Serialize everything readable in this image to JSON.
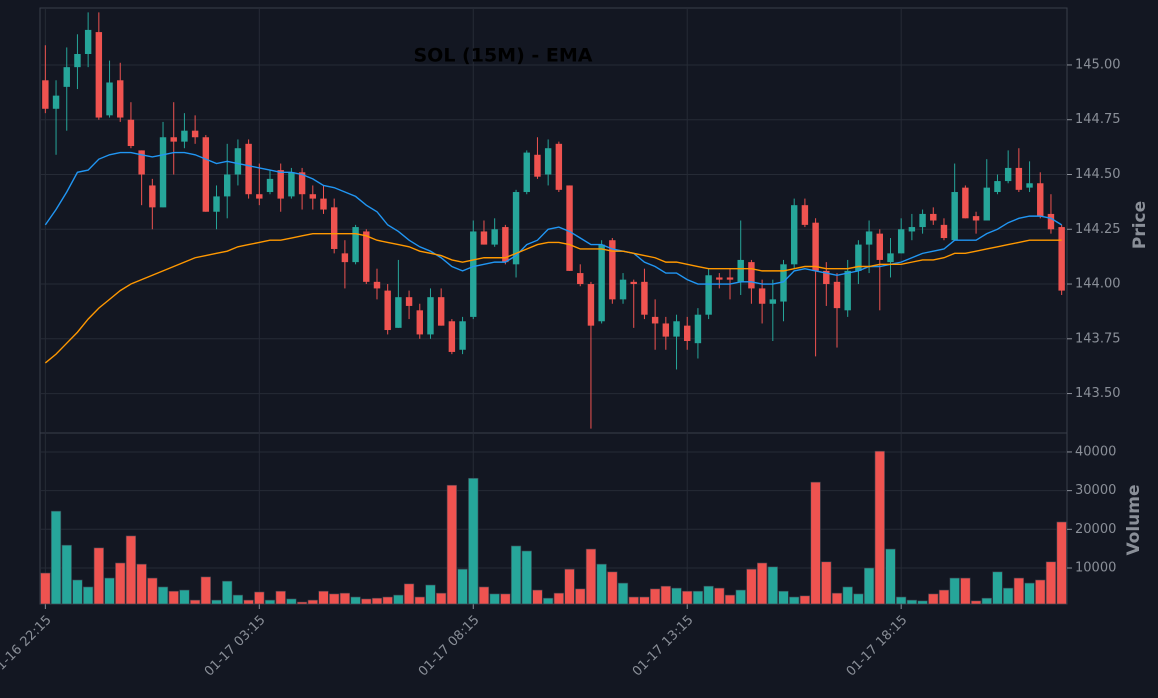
{
  "chart_data": {
    "type": "candlestick",
    "title": "SOL (15M) - EMA",
    "categories": [
      "01-16 22:15",
      null,
      null,
      null,
      null,
      null,
      null,
      null,
      null,
      null,
      null,
      null,
      null,
      null,
      null,
      null,
      null,
      null,
      null,
      null,
      "01-17 03:15",
      null,
      null,
      null,
      null,
      null,
      null,
      null,
      null,
      null,
      null,
      null,
      null,
      null,
      null,
      null,
      null,
      null,
      null,
      null,
      "01-17 08:15",
      null,
      null,
      null,
      null,
      null,
      null,
      null,
      null,
      null,
      null,
      null,
      null,
      null,
      null,
      null,
      null,
      null,
      null,
      null,
      "01-17 13:15",
      null,
      null,
      null,
      null,
      null,
      null,
      null,
      null,
      null,
      null,
      null,
      null,
      null,
      null,
      null,
      null,
      null,
      null,
      null,
      "01-17 18:15",
      null,
      null,
      null,
      null,
      null,
      null,
      null,
      null,
      null,
      null,
      null,
      null,
      null,
      null,
      null
    ],
    "xlim": [
      -0.5,
      95.5
    ],
    "open": [
      144.93,
      144.8,
      144.9,
      144.99,
      145.05,
      145.15,
      144.77,
      144.93,
      144.75,
      144.61,
      144.45,
      144.35,
      144.67,
      144.65,
      144.7,
      144.67,
      144.33,
      144.4,
      144.5,
      144.64,
      144.41,
      144.42,
      144.52,
      144.4,
      144.51,
      144.41,
      144.39,
      144.35,
      144.14,
      144.1,
      144.24,
      144.01,
      143.97,
      143.8,
      143.94,
      143.88,
      143.77,
      143.94,
      143.83,
      143.7,
      143.85,
      144.24,
      144.18,
      144.26,
      144.09,
      144.42,
      144.59,
      144.5,
      144.64,
      144.45,
      144.05,
      144.0,
      143.83,
      144.2,
      143.93,
      144.01,
      144.01,
      143.85,
      143.82,
      143.76,
      143.81,
      143.73,
      143.86,
      144.03,
      144.03,
      144.01,
      144.1,
      143.98,
      143.91,
      143.92,
      144.09,
      144.36,
      144.28,
      144.06,
      144.01,
      143.88,
      144.06,
      144.18,
      144.23,
      144.1,
      144.14,
      144.24,
      144.26,
      144.32,
      144.27,
      144.2,
      144.44,
      144.31,
      144.29,
      144.42,
      144.47,
      144.53,
      144.44,
      144.46,
      144.32,
      144.26
    ],
    "high": [
      145.09,
      144.93,
      145.08,
      145.14,
      145.24,
      145.24,
      145.02,
      145.01,
      144.83,
      144.61,
      144.48,
      144.74,
      144.83,
      144.78,
      144.77,
      144.68,
      144.45,
      144.64,
      144.66,
      144.66,
      144.55,
      144.52,
      144.55,
      144.53,
      144.53,
      144.45,
      144.45,
      144.39,
      144.2,
      144.27,
      144.25,
      144.07,
      144.0,
      144.11,
      143.97,
      143.91,
      143.98,
      143.98,
      143.84,
      143.85,
      144.29,
      144.29,
      144.3,
      144.27,
      144.43,
      144.61,
      144.67,
      144.66,
      144.65,
      144.45,
      144.09,
      144.01,
      144.2,
      144.21,
      144.05,
      144.02,
      144.07,
      143.93,
      143.85,
      143.86,
      143.85,
      143.89,
      144.07,
      144.05,
      144.07,
      144.29,
      144.11,
      144.02,
      144.02,
      144.11,
      144.39,
      144.39,
      144.3,
      144.1,
      144.05,
      144.11,
      144.2,
      144.29,
      144.25,
      144.21,
      144.3,
      144.32,
      144.34,
      144.35,
      144.3,
      144.55,
      144.45,
      144.33,
      144.57,
      144.5,
      144.61,
      144.62,
      144.56,
      144.51,
      144.41,
      144.27
    ],
    "low": [
      144.78,
      144.59,
      144.7,
      144.89,
      144.99,
      144.75,
      144.76,
      144.74,
      144.62,
      144.36,
      144.25,
      144.35,
      144.5,
      144.62,
      144.64,
      144.33,
      144.25,
      144.3,
      144.45,
      144.39,
      144.36,
      144.41,
      144.33,
      144.39,
      144.34,
      144.34,
      144.32,
      144.14,
      143.98,
      144.09,
      144.0,
      143.93,
      143.77,
      143.8,
      143.84,
      143.75,
      143.75,
      143.81,
      143.68,
      143.68,
      143.84,
      144.18,
      144.17,
      144.09,
      144.03,
      144.41,
      144.48,
      144.45,
      144.42,
      144.06,
      143.99,
      143.34,
      143.82,
      143.91,
      143.91,
      143.8,
      143.84,
      143.7,
      143.7,
      143.61,
      143.7,
      143.66,
      143.84,
      143.98,
      143.93,
      143.95,
      143.91,
      143.82,
      143.74,
      143.83,
      144.07,
      144.26,
      143.67,
      143.9,
      143.71,
      143.85,
      144.0,
      144.05,
      143.88,
      144.03,
      144.14,
      144.2,
      144.23,
      144.27,
      144.2,
      144.2,
      144.3,
      144.23,
      144.29,
      144.41,
      144.46,
      144.42,
      144.42,
      144.3,
      144.23,
      143.95
    ],
    "close": [
      144.8,
      144.86,
      144.99,
      145.05,
      145.16,
      144.76,
      144.92,
      144.76,
      144.63,
      144.5,
      144.35,
      144.67,
      144.65,
      144.7,
      144.67,
      144.33,
      144.4,
      144.5,
      144.62,
      144.41,
      144.39,
      144.48,
      144.39,
      144.51,
      144.41,
      144.39,
      144.34,
      144.16,
      144.1,
      144.26,
      144.01,
      143.98,
      143.79,
      143.94,
      143.9,
      143.77,
      143.94,
      143.81,
      143.69,
      143.83,
      144.24,
      144.18,
      144.25,
      144.1,
      144.42,
      144.6,
      144.49,
      144.62,
      144.43,
      144.06,
      144.0,
      143.81,
      144.18,
      143.93,
      144.02,
      144.0,
      143.86,
      143.82,
      143.76,
      143.83,
      143.74,
      143.86,
      144.04,
      144.02,
      144.02,
      144.11,
      143.98,
      143.91,
      143.93,
      144.09,
      144.36,
      144.27,
      144.06,
      144.0,
      143.89,
      144.06,
      144.18,
      144.24,
      144.11,
      144.14,
      144.25,
      144.26,
      144.32,
      144.29,
      144.21,
      144.42,
      144.3,
      144.29,
      144.44,
      144.47,
      144.53,
      144.43,
      144.46,
      144.31,
      144.25,
      143.97
    ],
    "up_color": "#26a69a",
    "down_color": "#ef5350",
    "series": [
      {
        "color": "#2196f3",
        "values": [
          144.27,
          144.34,
          144.42,
          144.51,
          144.52,
          144.57,
          144.59,
          144.6,
          144.6,
          144.59,
          144.58,
          144.59,
          144.6,
          144.6,
          144.59,
          144.57,
          144.55,
          144.56,
          144.55,
          144.54,
          144.53,
          144.52,
          144.51,
          144.51,
          144.5,
          144.48,
          144.45,
          144.44,
          144.42,
          144.4,
          144.36,
          144.33,
          144.27,
          144.24,
          144.2,
          144.17,
          144.15,
          144.12,
          144.08,
          144.06,
          144.08,
          144.09,
          144.1,
          144.1,
          144.13,
          144.18,
          144.2,
          144.25,
          144.26,
          144.24,
          144.21,
          144.18,
          144.18,
          144.16,
          144.15,
          144.14,
          144.1,
          144.08,
          144.05,
          144.05,
          144.02,
          144.0,
          144.0,
          144.0,
          144.0,
          144.01,
          144.01,
          144.0,
          144.0,
          144.01,
          144.06,
          144.07,
          144.06,
          144.05,
          144.04,
          144.05,
          144.06,
          144.08,
          144.08,
          144.09,
          144.1,
          144.12,
          144.14,
          144.15,
          144.16,
          144.2,
          144.2,
          144.2,
          144.23,
          144.25,
          144.28,
          144.3,
          144.31,
          144.31,
          144.3,
          144.27
        ]
      },
      {
        "color": "#ff9800",
        "values": [
          143.64,
          143.68,
          143.73,
          143.78,
          143.84,
          143.89,
          143.93,
          143.97,
          144.0,
          144.02,
          144.04,
          144.06,
          144.08,
          144.1,
          144.12,
          144.13,
          144.14,
          144.15,
          144.17,
          144.18,
          144.19,
          144.2,
          144.2,
          144.21,
          144.22,
          144.23,
          144.23,
          144.23,
          144.23,
          144.23,
          144.22,
          144.2,
          144.19,
          144.18,
          144.17,
          144.15,
          144.14,
          144.13,
          144.11,
          144.1,
          144.11,
          144.12,
          144.12,
          144.12,
          144.14,
          144.16,
          144.18,
          144.19,
          144.19,
          144.18,
          144.16,
          144.16,
          144.16,
          144.15,
          144.15,
          144.14,
          144.13,
          144.12,
          144.1,
          144.1,
          144.09,
          144.08,
          144.07,
          144.07,
          144.07,
          144.07,
          144.07,
          144.06,
          144.06,
          144.06,
          144.07,
          144.08,
          144.08,
          144.07,
          144.07,
          144.07,
          144.08,
          144.08,
          144.09,
          144.09,
          144.09,
          144.1,
          144.11,
          144.11,
          144.12,
          144.14,
          144.14,
          144.15,
          144.16,
          144.17,
          144.18,
          144.19,
          144.2,
          144.2,
          144.2,
          144.2
        ]
      }
    ],
    "ylabel": "Price",
    "ylim": [
      143.32,
      145.26
    ],
    "yticks": [
      {
        "value": 143.5,
        "label": "143.50"
      },
      143.75,
      {
        "value": 144,
        "label": "144.00"
      },
      144.25,
      {
        "value": 144.5,
        "label": "144.50"
      },
      144.75,
      {
        "value": 145,
        "label": "145.00"
      }
    ],
    "grid": true,
    "volume": {
      "ylabel": "Volume",
      "ylim": [
        690,
        44900
      ],
      "yticks": [
        10000,
        20000,
        30000,
        40000
      ],
      "values": [
        8700,
        24700,
        15900,
        6900,
        5100,
        15200,
        7400,
        11300,
        18300,
        11000,
        7400,
        5100,
        4000,
        4300,
        1700,
        7700,
        1700,
        6600,
        3000,
        1700,
        3800,
        1700,
        4000,
        2000,
        1200,
        1700,
        4000,
        3300,
        3500,
        2500,
        2000,
        2200,
        2500,
        3000,
        5900,
        2500,
        5600,
        3500,
        31400,
        9700,
        33200,
        5100,
        3300,
        3300,
        15700,
        14400,
        4300,
        2200,
        3500,
        9700,
        4600,
        14900,
        11000,
        9000,
        6100,
        2500,
        2500,
        4600,
        5300,
        4800,
        4000,
        4000,
        5300,
        4800,
        3000,
        4300,
        9700,
        11300,
        10300,
        4000,
        2500,
        2800,
        32200,
        11600,
        3500,
        5100,
        3300,
        10000,
        40200,
        14900,
        2500,
        1700,
        1500,
        3300,
        4300,
        7400,
        7400,
        1500,
        2200,
        9000,
        4800,
        7400,
        6100,
        6900,
        11600,
        21900
      ]
    }
  }
}
